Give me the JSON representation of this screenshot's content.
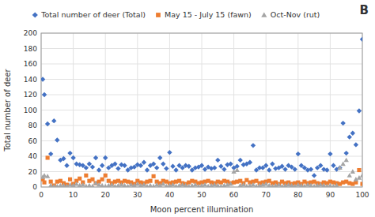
{
  "chart_data": {
    "type": "scatter",
    "annotation": "B",
    "xlabel": "Moon percent illumination",
    "ylabel": "Total number of deer",
    "xlim": [
      0,
      100
    ],
    "ylim": [
      0,
      200
    ],
    "xticks": [
      0,
      10,
      20,
      30,
      40,
      50,
      60,
      70,
      80,
      90,
      100
    ],
    "yticks": [
      0,
      20,
      40,
      60,
      80,
      100,
      120,
      140,
      160,
      180,
      200
    ],
    "grid": true,
    "legend": "top",
    "x": [
      0.5,
      1,
      2,
      3,
      4,
      5,
      6,
      7,
      8,
      9,
      10,
      11,
      12,
      13,
      14,
      15,
      16,
      17,
      18,
      19,
      20,
      21,
      22,
      23,
      24,
      25,
      26,
      27,
      28,
      29,
      30,
      31,
      32,
      33,
      34,
      35,
      36,
      37,
      38,
      39,
      40,
      41,
      42,
      43,
      44,
      45,
      46,
      47,
      48,
      49,
      50,
      51,
      52,
      53,
      54,
      55,
      56,
      57,
      58,
      59,
      60,
      61,
      62,
      63,
      64,
      65,
      66,
      67,
      68,
      69,
      70,
      71,
      72,
      73,
      74,
      75,
      76,
      77,
      78,
      79,
      80,
      81,
      82,
      83,
      84,
      85,
      86,
      87,
      88,
      89,
      90,
      91,
      92,
      93,
      94,
      95,
      96,
      97,
      98,
      99,
      100
    ],
    "series": [
      {
        "name": "Total number of deer (Total)",
        "color": "#4472c4",
        "marker": "diamond",
        "values": [
          140,
          120,
          82,
          43,
          86,
          61,
          35,
          37,
          28,
          44,
          38,
          30,
          29,
          28,
          25,
          30,
          26,
          38,
          22,
          28,
          38,
          25,
          28,
          30,
          24,
          29,
          28,
          22,
          25,
          26,
          29,
          28,
          32,
          22,
          28,
          30,
          25,
          38,
          30,
          24,
          45,
          27,
          22,
          28,
          25,
          28,
          27,
          22,
          25,
          26,
          28,
          23,
          26,
          24,
          25,
          35,
          27,
          23,
          29,
          30,
          25,
          27,
          35,
          29,
          30,
          32,
          54,
          22,
          25,
          25,
          28,
          22,
          30,
          24,
          25,
          27,
          23,
          28,
          26,
          23,
          43,
          28,
          25,
          22,
          23,
          15,
          25,
          28,
          23,
          22,
          43,
          28,
          23,
          25,
          83,
          44,
          65,
          70,
          55,
          99,
          192
        ]
      },
      {
        "name": "May 15 - July 15 (fawn)",
        "color": "#ed7d31",
        "marker": "square",
        "values": [
          10,
          6,
          38,
          7,
          2,
          7,
          8,
          5,
          3,
          10,
          4,
          8,
          11,
          6,
          15,
          8,
          10,
          5,
          7,
          10,
          15,
          8,
          5,
          7,
          8,
          6,
          8,
          7,
          6,
          4,
          8,
          6,
          5,
          7,
          8,
          14,
          7,
          5,
          8,
          7,
          5,
          6,
          7,
          8,
          5,
          4,
          6,
          8,
          7,
          5,
          6,
          7,
          8,
          6,
          5,
          7,
          6,
          8,
          7,
          5,
          6,
          7,
          8,
          5,
          9,
          6,
          7,
          8,
          5,
          6,
          7,
          8,
          5,
          6,
          4,
          7,
          5,
          6,
          4,
          5,
          6,
          4,
          7,
          5,
          6,
          7,
          5,
          4,
          6,
          5,
          7,
          6,
          5,
          4,
          6,
          7,
          5,
          4,
          6,
          22,
          4
        ]
      },
      {
        "name": "Oct-Nov (rut)",
        "color": "#a5a5a5",
        "marker": "triangle",
        "values": [
          13,
          15,
          14,
          2,
          1,
          1,
          2,
          2,
          1,
          3,
          2,
          4,
          2,
          3,
          1,
          2,
          1,
          5,
          3,
          2,
          1,
          2,
          3,
          1,
          2,
          3,
          2,
          1,
          3,
          2,
          4,
          2,
          3,
          1,
          2,
          1,
          3,
          2,
          4,
          1,
          2,
          3,
          1,
          2,
          3,
          2,
          1,
          2,
          3,
          1,
          2,
          3,
          1,
          2,
          3,
          2,
          1,
          2,
          3,
          4,
          20,
          22,
          2,
          3,
          1,
          2,
          3,
          1,
          2,
          3,
          4,
          2,
          1,
          2,
          3,
          1,
          2,
          3,
          2,
          1,
          3,
          2,
          1,
          3,
          2,
          1,
          2,
          3,
          2,
          1,
          2,
          1,
          2,
          25,
          30,
          35,
          15,
          20,
          10,
          12,
          15
        ]
      }
    ]
  }
}
